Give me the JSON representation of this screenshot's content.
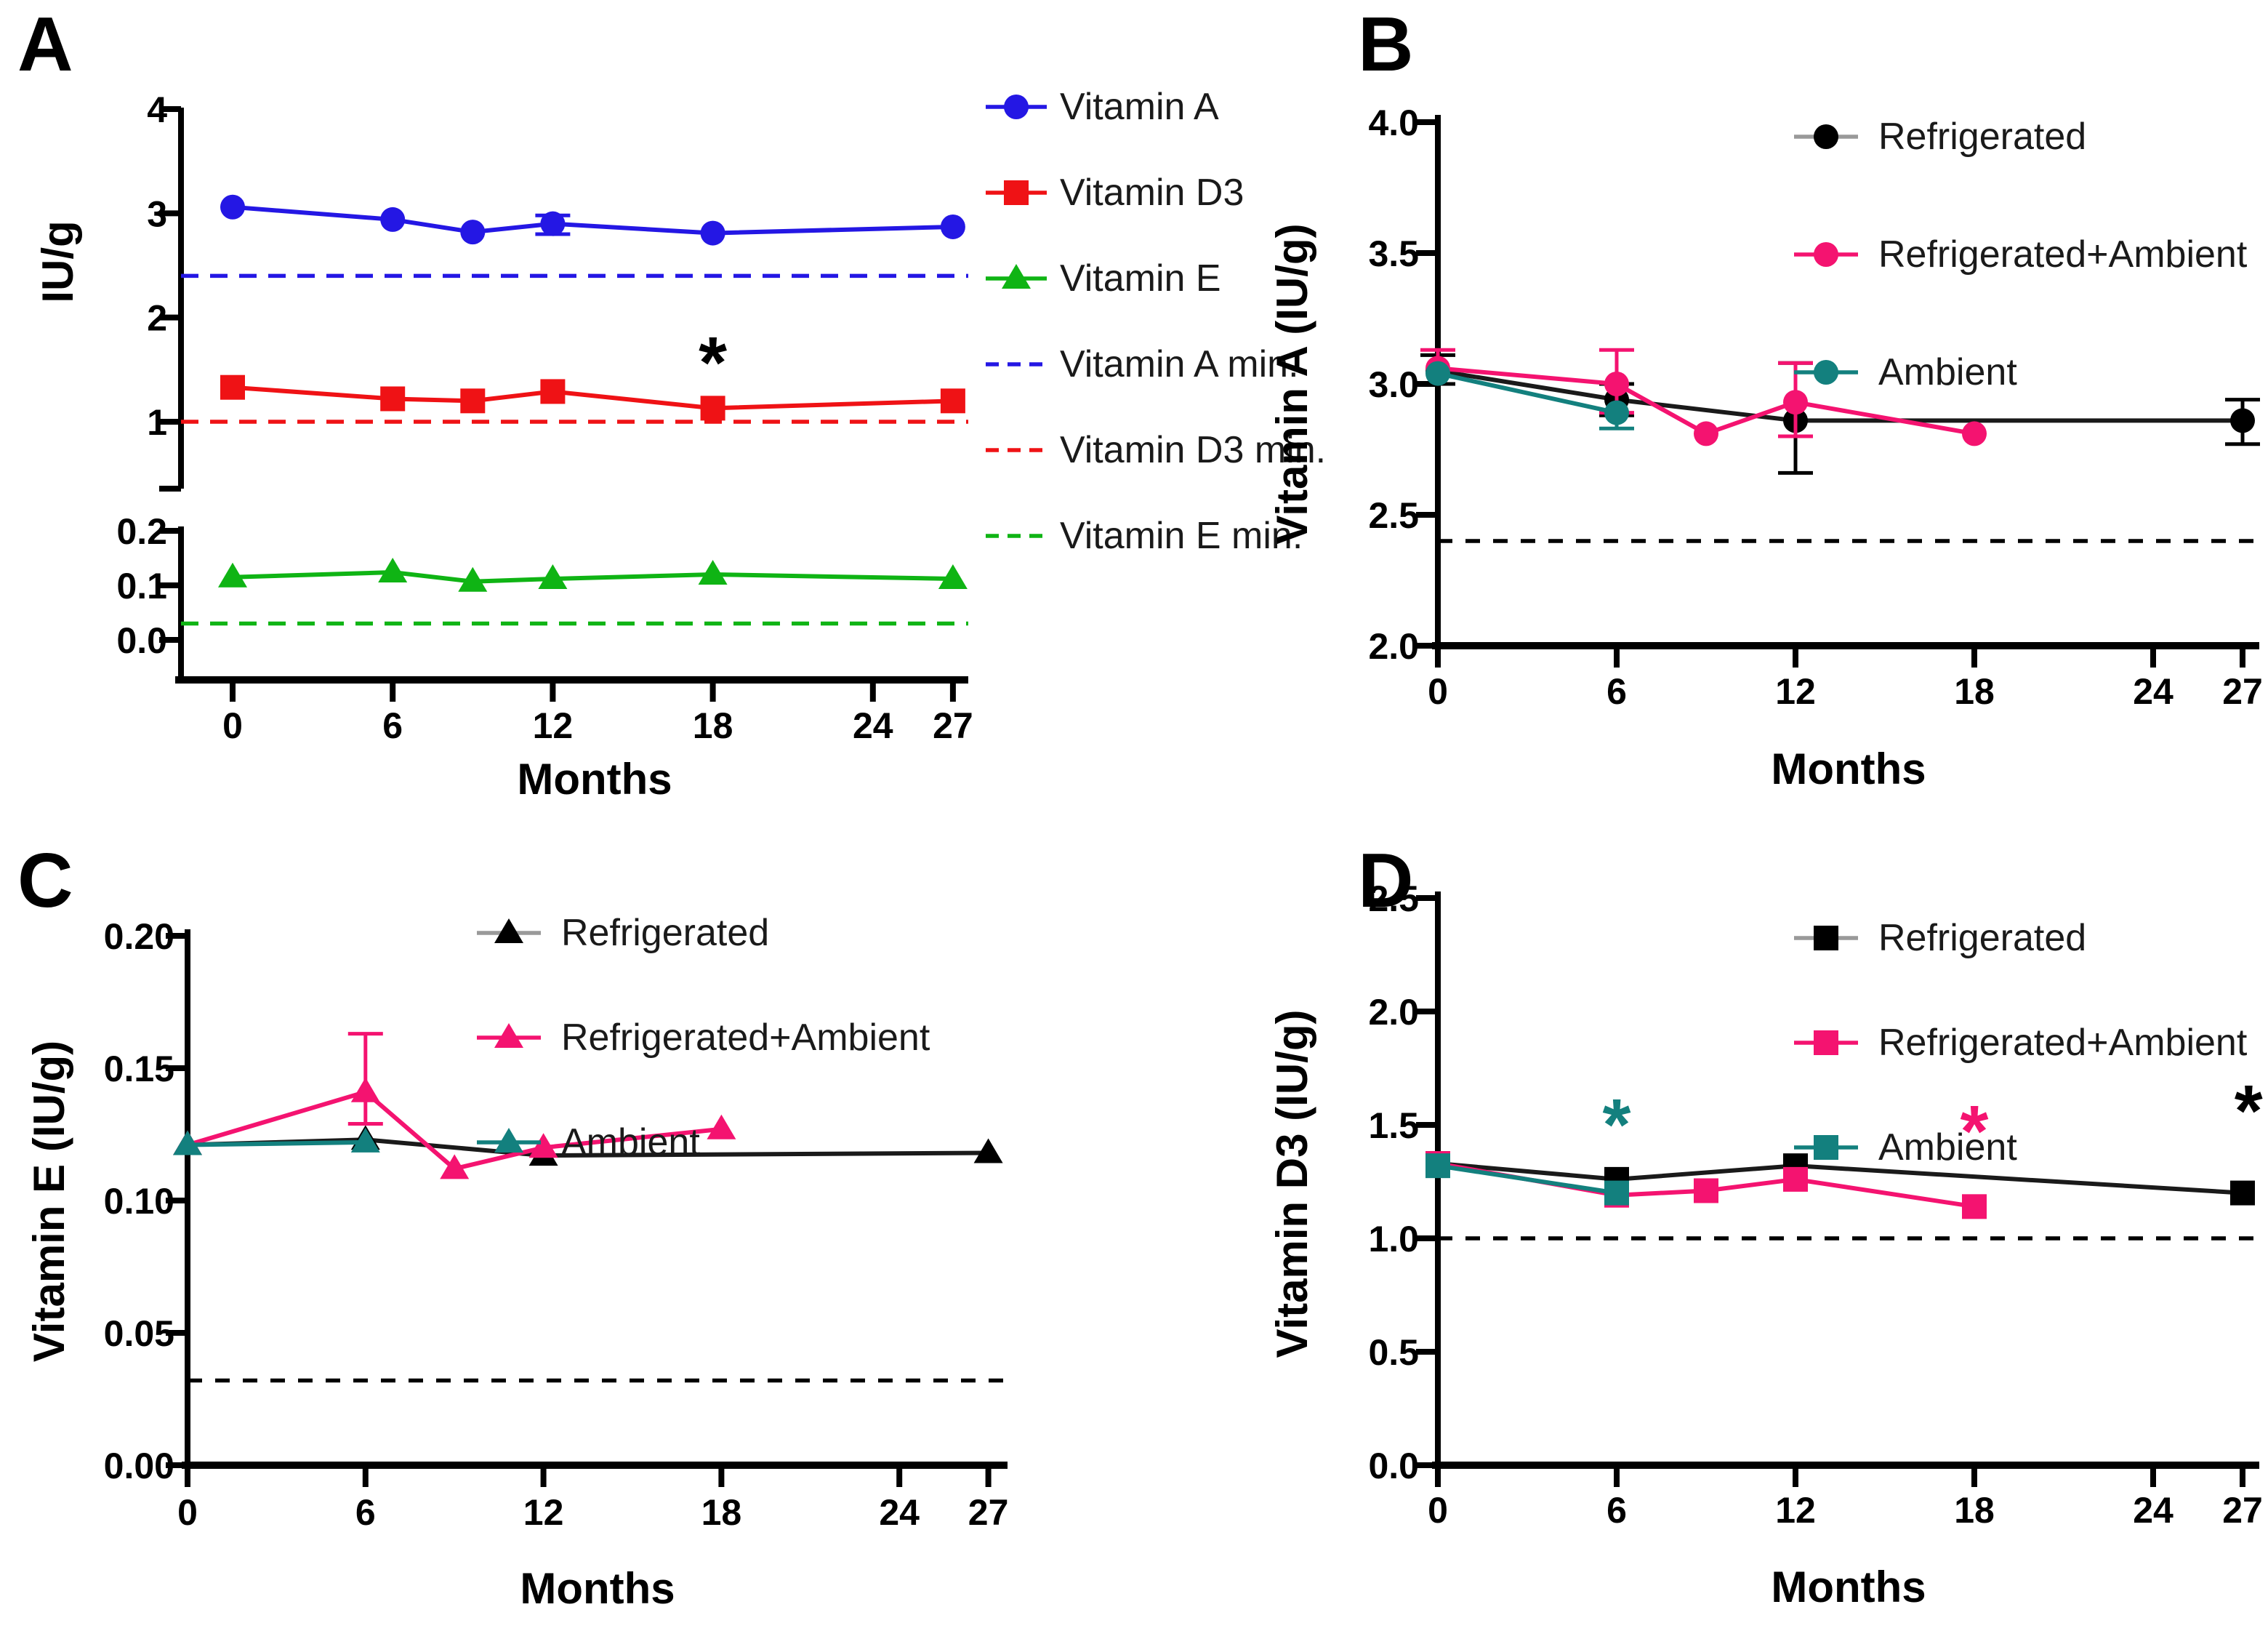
{
  "figure": {
    "background": "#ffffff"
  },
  "colors": {
    "blue": "#2417E4",
    "red": "#EF1215",
    "green": "#0FB414",
    "pink": "#F41370",
    "teal": "#13807E",
    "black": "#000000"
  },
  "chart_data": [
    {
      "panel_label": "A",
      "type": "line",
      "xlabel": "Months",
      "ylabel": "IU/g",
      "x_ticks": [
        0,
        6,
        12,
        18,
        24,
        27
      ],
      "x_tick_labels": [
        "0",
        "6",
        "12",
        "18",
        "24",
        "27"
      ],
      "xlim": [
        -1.95,
        27.6
      ],
      "grid": false,
      "axis_break": true,
      "segments": [
        {
          "name": "upper",
          "domain": [
            1,
            4
          ],
          "tick_values": [
            4,
            3,
            2,
            1
          ],
          "tick_labels": [
            "4",
            "3",
            "2",
            "1"
          ]
        },
        {
          "name": "lower",
          "domain": [
            0,
            0.2
          ],
          "tick_values": [
            0.2,
            0.1,
            0.0
          ],
          "tick_labels": [
            "0.2",
            "0.1",
            "0.0"
          ]
        }
      ],
      "series": [
        {
          "name": "Vitamin A",
          "color_key": "blue",
          "marker": "circle",
          "segment": 0,
          "x": [
            0,
            6,
            9,
            12,
            18,
            27
          ],
          "y": [
            3.06,
            2.94,
            2.82,
            2.9,
            2.81,
            2.87
          ],
          "err_up": [
            0,
            0,
            0,
            0.08,
            0,
            0
          ],
          "err_down": [
            0,
            0,
            0,
            0.1,
            0,
            0
          ]
        },
        {
          "name": "Vitamin D3",
          "color_key": "red",
          "marker": "square",
          "segment": 0,
          "x": [
            0,
            6,
            9,
            12,
            18,
            27
          ],
          "y": [
            1.33,
            1.22,
            1.2,
            1.29,
            1.13,
            1.2
          ],
          "err_up": [
            0,
            0,
            0,
            0,
            0,
            0
          ],
          "err_down": [
            0,
            0,
            0,
            0,
            0,
            0
          ]
        },
        {
          "name": "Vitamin E",
          "color_key": "green",
          "marker": "triangle",
          "segment": 1,
          "x": [
            0,
            6,
            9,
            12,
            18,
            27
          ],
          "y": [
            0.115,
            0.124,
            0.107,
            0.112,
            0.12,
            0.112
          ],
          "err_up": [
            0,
            0,
            0,
            0,
            0,
            0
          ],
          "err_down": [
            0,
            0,
            0,
            0,
            0,
            0
          ]
        }
      ],
      "min_lines": [
        {
          "name": "Vitamin A min.",
          "color_key": "blue",
          "value": 2.4,
          "segment": 0
        },
        {
          "name": "Vitamin D3 min.",
          "color_key": "red",
          "value": 1.0,
          "segment": 0
        },
        {
          "name": "Vitamin E min.",
          "color_key": "green",
          "value": 0.03,
          "segment": 1
        }
      ],
      "annotations": [
        {
          "text": "*",
          "x": 18,
          "value": 1.78,
          "segment": 0,
          "color_key": "black"
        }
      ],
      "legend_position": "right-outside",
      "legend": [
        {
          "label": "Vitamin A",
          "color_key": "blue",
          "marker": "circle",
          "dashed": false
        },
        {
          "label": "Vitamin D3",
          "color_key": "red",
          "marker": "square",
          "dashed": false
        },
        {
          "label": "Vitamin E",
          "color_key": "green",
          "marker": "triangle",
          "dashed": false
        },
        {
          "label": "Vitamin A min.",
          "color_key": "blue",
          "marker": null,
          "dashed": true
        },
        {
          "label": "Vitamin D3 min.",
          "color_key": "red",
          "marker": null,
          "dashed": true
        },
        {
          "label": "Vitamin E min.",
          "color_key": "green",
          "marker": null,
          "dashed": true
        }
      ]
    },
    {
      "panel_label": "B",
      "type": "line",
      "xlabel": "Months",
      "ylabel": "Vitamin A (IU/g)",
      "x_ticks": [
        0,
        6,
        12,
        18,
        24,
        27
      ],
      "x_tick_labels": [
        "0",
        "6",
        "12",
        "18",
        "24",
        "27"
      ],
      "xlim": [
        0,
        27.5
      ],
      "grid": false,
      "axis_break": false,
      "segments": [
        {
          "name": "main",
          "domain": [
            2.0,
            4.0
          ],
          "tick_values": [
            4.0,
            3.5,
            3.0,
            2.5,
            2.0
          ],
          "tick_labels": [
            "4.0",
            "3.5",
            "3.0",
            "2.5",
            "2.0"
          ]
        }
      ],
      "series": [
        {
          "name": "Refrigerated",
          "color_key": "black",
          "marker": "circle",
          "segment": 0,
          "x": [
            0,
            6,
            12,
            27
          ],
          "y": [
            3.05,
            2.94,
            2.86,
            2.86
          ],
          "err_up": [
            0.06,
            0.06,
            0.22,
            0.08
          ],
          "err_down": [
            0.05,
            0.06,
            0.2,
            0.09
          ]
        },
        {
          "name": "Refrigerated+Ambient",
          "color_key": "pink",
          "marker": "circle",
          "segment": 0,
          "x": [
            0,
            6,
            9,
            12,
            18
          ],
          "y": [
            3.06,
            3.0,
            2.81,
            2.93,
            2.81
          ],
          "err_up": [
            0.07,
            0.13,
            0,
            0.15,
            0
          ],
          "err_down": [
            0,
            0.11,
            0,
            0.13,
            0
          ]
        },
        {
          "name": "Ambient",
          "color_key": "teal",
          "marker": "circle",
          "segment": 0,
          "x": [
            0,
            6
          ],
          "y": [
            3.04,
            2.89
          ],
          "err_up": [
            0,
            0
          ],
          "err_down": [
            0,
            0.06
          ]
        }
      ],
      "min_lines": [
        {
          "name": "minimum",
          "color_key": "black",
          "value": 2.4,
          "segment": 0
        }
      ],
      "annotations": [],
      "legend_position": "inside-top-right",
      "legend": [
        {
          "label": "Refrigerated",
          "color_key": "black",
          "marker": "circle",
          "dashed": false
        },
        {
          "label": "Refrigerated+Ambient",
          "color_key": "pink",
          "marker": "circle",
          "dashed": false
        },
        {
          "label": "Ambient",
          "color_key": "teal",
          "marker": "circle",
          "dashed": false
        }
      ]
    },
    {
      "panel_label": "C",
      "type": "line",
      "xlabel": "Months",
      "ylabel": "Vitamin E (IU/g)",
      "x_ticks": [
        0,
        6,
        12,
        18,
        24,
        27
      ],
      "x_tick_labels": [
        "0",
        "6",
        "12",
        "18",
        "24",
        "27"
      ],
      "xlim": [
        0,
        27.6
      ],
      "grid": false,
      "axis_break": false,
      "segments": [
        {
          "name": "main",
          "domain": [
            0.0,
            0.2
          ],
          "tick_values": [
            0.2,
            0.15,
            0.1,
            0.05,
            0.0
          ],
          "tick_labels": [
            "0.20",
            "0.15",
            "0.10",
            "0.05",
            "0.00"
          ]
        }
      ],
      "series": [
        {
          "name": "Refrigerated",
          "color_key": "black",
          "marker": "triangle",
          "segment": 0,
          "x": [
            0,
            6,
            12,
            27
          ],
          "y": [
            0.121,
            0.123,
            0.117,
            0.118
          ],
          "err_up": [
            0,
            0,
            0,
            0
          ],
          "err_down": [
            0,
            0,
            0,
            0
          ]
        },
        {
          "name": "Refrigerated+Ambient",
          "color_key": "pink",
          "marker": "triangle",
          "segment": 0,
          "x": [
            0,
            6,
            9,
            12,
            18
          ],
          "y": [
            0.121,
            0.141,
            0.112,
            0.12,
            0.127
          ],
          "err_up": [
            0,
            0.022,
            0,
            0,
            0
          ],
          "err_down": [
            0,
            0.012,
            0,
            0,
            0
          ]
        },
        {
          "name": "Ambient",
          "color_key": "teal",
          "marker": "triangle",
          "segment": 0,
          "x": [
            0,
            6
          ],
          "y": [
            0.121,
            0.122
          ],
          "err_up": [
            0,
            0
          ],
          "err_down": [
            0,
            0
          ]
        }
      ],
      "min_lines": [
        {
          "name": "minimum",
          "color_key": "black",
          "value": 0.032,
          "segment": 0
        }
      ],
      "annotations": [],
      "legend_position": "inside-top-right",
      "legend": [
        {
          "label": "Refrigerated",
          "color_key": "black",
          "marker": "triangle",
          "dashed": false
        },
        {
          "label": "Refrigerated+Ambient",
          "color_key": "pink",
          "marker": "triangle",
          "dashed": false
        },
        {
          "label": "Ambient",
          "color_key": "teal",
          "marker": "triangle",
          "dashed": false
        }
      ]
    },
    {
      "panel_label": "D",
      "type": "line",
      "xlabel": "Months",
      "ylabel": "Vitamin D3 (IU/g)",
      "x_ticks": [
        0,
        6,
        12,
        18,
        24,
        27
      ],
      "x_tick_labels": [
        "0",
        "6",
        "12",
        "18",
        "24",
        "27"
      ],
      "xlim": [
        0,
        27.5
      ],
      "grid": false,
      "axis_break": false,
      "segments": [
        {
          "name": "main",
          "domain": [
            0.0,
            2.5
          ],
          "tick_values": [
            2.5,
            2.0,
            1.5,
            1.0,
            0.5,
            0.0
          ],
          "tick_labels": [
            "2.5",
            "2.0",
            "1.5",
            "1.0",
            "0.5",
            "0.0"
          ]
        }
      ],
      "series": [
        {
          "name": "Refrigerated",
          "color_key": "black",
          "marker": "square",
          "segment": 0,
          "x": [
            0,
            6,
            12,
            27
          ],
          "y": [
            1.33,
            1.26,
            1.32,
            1.2
          ],
          "err_up": [
            0,
            0,
            0,
            0
          ],
          "err_down": [
            0,
            0,
            0,
            0
          ]
        },
        {
          "name": "Refrigerated+Ambient",
          "color_key": "pink",
          "marker": "square",
          "segment": 0,
          "x": [
            0,
            6,
            9,
            12,
            18
          ],
          "y": [
            1.33,
            1.19,
            1.21,
            1.26,
            1.14
          ],
          "err_up": [
            0,
            0,
            0,
            0,
            0
          ],
          "err_down": [
            0,
            0,
            0,
            0,
            0
          ]
        },
        {
          "name": "Ambient",
          "color_key": "teal",
          "marker": "square",
          "segment": 0,
          "x": [
            0,
            6
          ],
          "y": [
            1.32,
            1.2
          ],
          "err_up": [
            0,
            0
          ],
          "err_down": [
            0,
            0
          ]
        }
      ],
      "min_lines": [
        {
          "name": "minimum",
          "color_key": "black",
          "value": 1.0,
          "segment": 0
        }
      ],
      "annotations": [
        {
          "text": "*",
          "x": 6,
          "value": 1.6,
          "segment": 0,
          "color_key": "teal"
        },
        {
          "text": "*",
          "x": 18,
          "value": 1.57,
          "segment": 0,
          "color_key": "pink"
        },
        {
          "text": "*",
          "x": 27.2,
          "value": 1.66,
          "segment": 0,
          "color_key": "black"
        }
      ],
      "legend_position": "inside-top-right",
      "legend": [
        {
          "label": "Refrigerated",
          "color_key": "black",
          "marker": "square",
          "dashed": false
        },
        {
          "label": "Refrigerated+Ambient",
          "color_key": "pink",
          "marker": "square",
          "dashed": false
        },
        {
          "label": "Ambient",
          "color_key": "teal",
          "marker": "square",
          "dashed": false
        }
      ]
    }
  ]
}
